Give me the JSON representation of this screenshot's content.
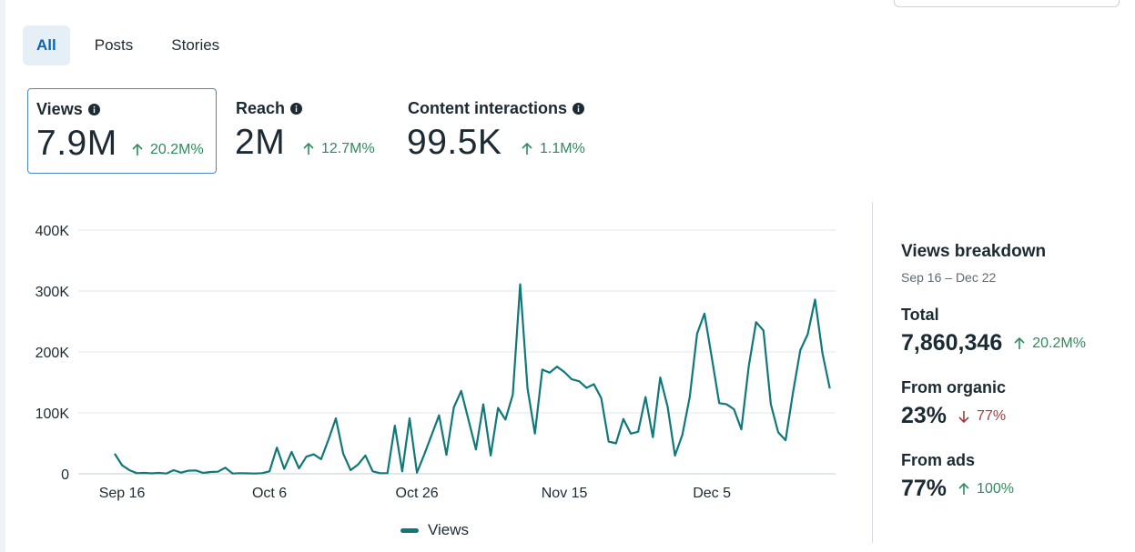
{
  "tabs": [
    {
      "label": "All",
      "active": true
    },
    {
      "label": "Posts",
      "active": false
    },
    {
      "label": "Stories",
      "active": false
    }
  ],
  "metrics": [
    {
      "label": "Views",
      "value": "7.9M",
      "change": "20.2M%",
      "direction": "up",
      "selected": true
    },
    {
      "label": "Reach",
      "value": "2M",
      "change": "12.7M%",
      "direction": "up",
      "selected": false
    },
    {
      "label": "Content interactions",
      "value": "99.5K",
      "change": "1.1M%",
      "direction": "up",
      "selected": false
    }
  ],
  "colors": {
    "line": "#107879",
    "up": "#2f8a5c",
    "down": "#a33b3b",
    "accent": "#0a66b0"
  },
  "chart_data": {
    "type": "line",
    "series": [
      {
        "name": "Views",
        "values": [
          33000,
          14000,
          6000,
          1000,
          1500,
          800,
          1500,
          500,
          6000,
          2000,
          5000,
          5500,
          1500,
          3000,
          3500,
          10000,
          500,
          1000,
          800,
          500,
          1000,
          4000,
          43000,
          8000,
          36000,
          9000,
          28000,
          32000,
          24000,
          56000,
          91000,
          33000,
          6000,
          15000,
          30000,
          4000,
          1000,
          1000,
          79000,
          4000,
          91000,
          2000,
          32000,
          64000,
          96000,
          31000,
          109000,
          136000,
          88000,
          40000,
          114000,
          30000,
          108000,
          89000,
          130000,
          311000,
          140000,
          66000,
          171000,
          166000,
          176000,
          167000,
          155000,
          152000,
          141000,
          147000,
          124000,
          53000,
          50000,
          90000,
          66000,
          69000,
          126000,
          60000,
          158000,
          110000,
          30000,
          64000,
          126000,
          230000,
          263000,
          190000,
          116000,
          114000,
          106000,
          73000,
          176000,
          249000,
          235000,
          114000,
          68000,
          55000,
          133000,
          203000,
          229000,
          286000,
          198000,
          140000
        ]
      }
    ],
    "x_tick_labels": [
      "Sep 16",
      "Oct 6",
      "Oct 26",
      "Nov 15",
      "Dec 5"
    ],
    "x_tick_indices": [
      1,
      21,
      41,
      61,
      81
    ],
    "y_tick_labels": [
      "0",
      "100K",
      "200K",
      "300K",
      "400K"
    ],
    "y_tick_values": [
      0,
      100000,
      200000,
      300000,
      400000
    ],
    "ylim": [
      0,
      400000
    ],
    "legend": "Views",
    "legend_position": "bottom",
    "grid": true
  },
  "breakdown": {
    "title": "Views breakdown",
    "range": "Sep 16 – Dec 22",
    "total": {
      "label": "Total",
      "value": "7,860,346",
      "change": "20.2M%",
      "direction": "up"
    },
    "organic": {
      "label": "From organic",
      "value": "23%",
      "change": "77%",
      "direction": "down"
    },
    "ads": {
      "label": "From ads",
      "value": "77%",
      "change": "100%",
      "direction": "up"
    }
  }
}
